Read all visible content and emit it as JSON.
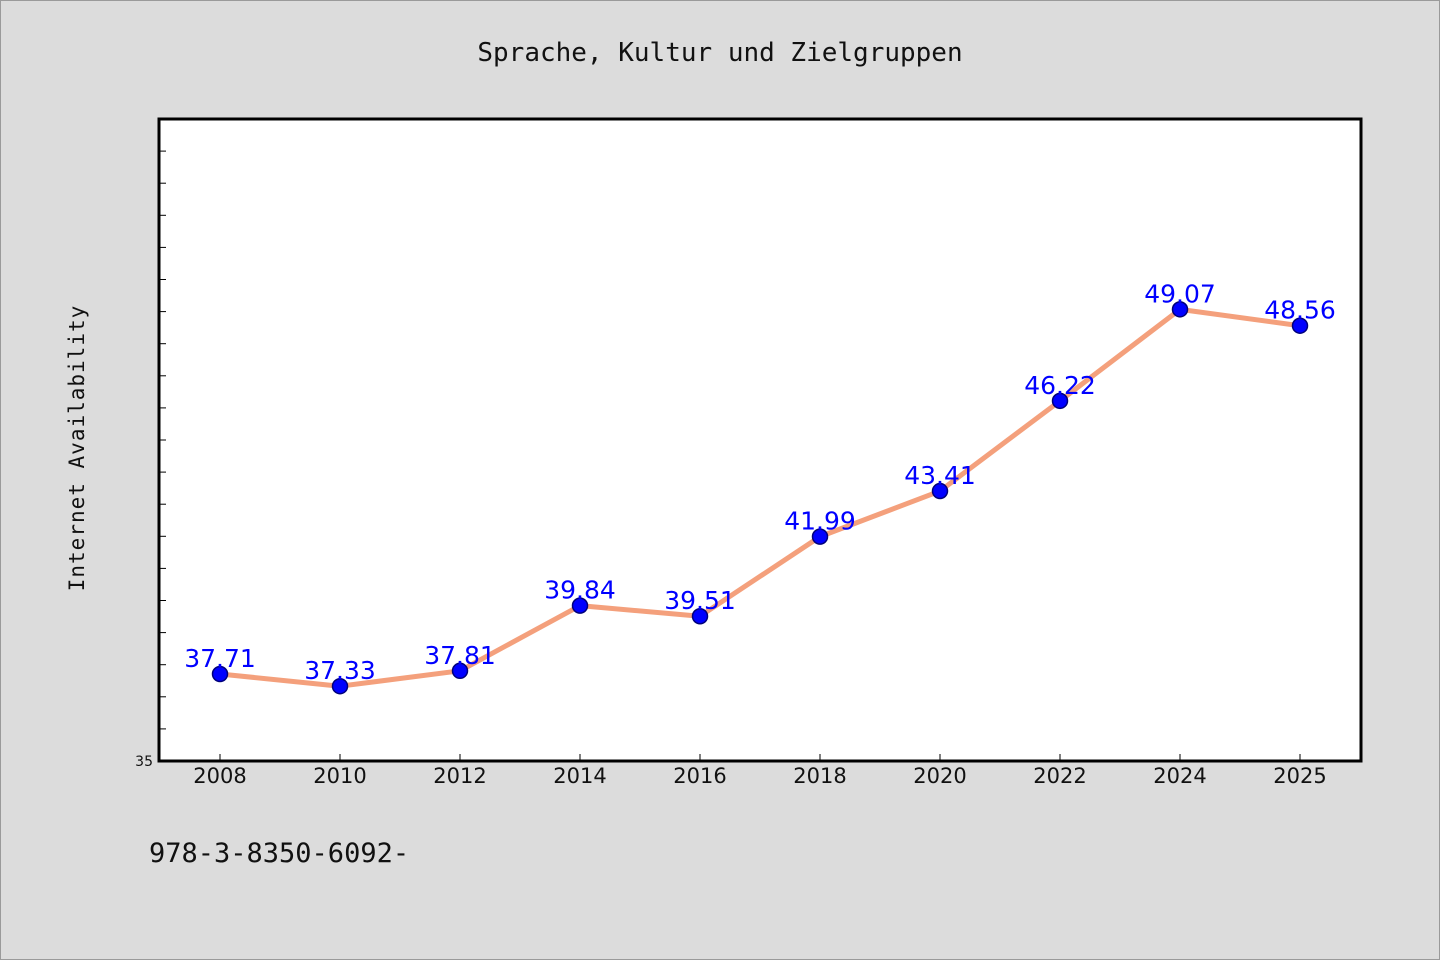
{
  "chart_data": {
    "type": "line",
    "title": "Sprache, Kultur und Zielgruppen",
    "xlabel": "",
    "ylabel": "Internet Availability",
    "categories": [
      "2008",
      "2010",
      "2012",
      "2014",
      "2016",
      "2018",
      "2020",
      "2022",
      "2024",
      "2025"
    ],
    "series": [
      {
        "values": [
          37.71,
          37.33,
          37.81,
          39.84,
          39.51,
          41.99,
          43.41,
          46.22,
          49.07,
          48.56
        ],
        "labels": [
          "37.71",
          "37.33",
          "37.81",
          "39.84",
          "39.51",
          "41.99",
          "43.41",
          "46.22",
          "49.07",
          "48.56"
        ],
        "line_color": "#f4a07c",
        "marker_color": "#0000ff"
      }
    ],
    "ylim": [
      35,
      55
    ],
    "ytick_labels": [
      "35"
    ],
    "grid": false,
    "legend": "none"
  },
  "footer": {
    "text": "978-3-8350-6092-"
  },
  "colors": {
    "background": "#dcdcdc",
    "plot_area": "#ffffff",
    "data_label": "#0000ff"
  }
}
